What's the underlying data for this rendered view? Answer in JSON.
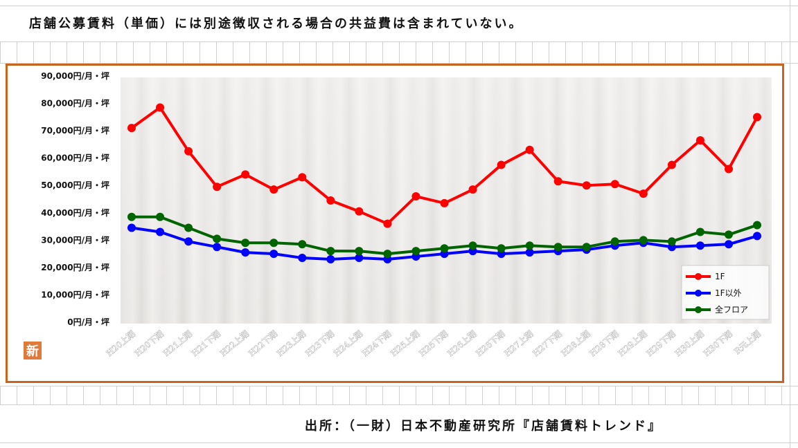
{
  "header": {
    "note": "店舗公募賃料（単価）には別途徴収される場合の共益費は含まれていない。"
  },
  "footer": {
    "source": "出所：（一財）日本不動産研究所『店舗賃料トレンド』"
  },
  "badge": {
    "text": "新"
  },
  "colors": {
    "frame": "#c8641e",
    "1F": "#ff0000",
    "1F以外": "#0000ff",
    "全フロア": "#006400"
  },
  "chart_data": {
    "type": "line",
    "title": "",
    "xlabel": "",
    "ylabel": "",
    "ylim": [
      0,
      90000
    ],
    "y_ticks": [
      0,
      10000,
      20000,
      30000,
      40000,
      50000,
      60000,
      70000,
      80000,
      90000
    ],
    "y_tick_labels": [
      "0円/月・坪",
      "10,000円/月・坪",
      "20,000円/月・坪",
      "30,000円/月・坪",
      "40,000円/月・坪",
      "50,000円/月・坪",
      "60,000円/月・坪",
      "70,000円/月・坪",
      "80,000円/月・坪",
      "90,000円/月・坪"
    ],
    "categories": [
      "H20上期",
      "H20下期",
      "H21上期",
      "H21下期",
      "H22上期",
      "H22下期",
      "H23上期",
      "H23下期",
      "H24上期",
      "H24下期",
      "H25上期",
      "H25下期",
      "H26上期",
      "H26下期",
      "H27上期",
      "H27下期",
      "H28上期",
      "H28下期",
      "H29上期",
      "H29下期",
      "H30上期",
      "H30下期",
      "R元上期"
    ],
    "series": [
      {
        "name": "1F",
        "values": [
          71000,
          78500,
          62500,
          49500,
          54000,
          48500,
          53000,
          44500,
          40500,
          36000,
          46000,
          43500,
          48500,
          57500,
          63000,
          51500,
          50000,
          50500,
          47000,
          57500,
          66500,
          56000,
          75000
        ]
      },
      {
        "name": "1F以外",
        "values": [
          34500,
          33000,
          29500,
          27500,
          25500,
          25000,
          23500,
          23000,
          23500,
          23000,
          24000,
          25000,
          26000,
          25000,
          25500,
          26000,
          26500,
          28000,
          29000,
          27500,
          28000,
          28500,
          31500
        ]
      },
      {
        "name": "全フロア",
        "values": [
          38500,
          38500,
          34500,
          30500,
          29000,
          29000,
          28500,
          26000,
          26000,
          25000,
          26000,
          27000,
          28000,
          27000,
          28000,
          27500,
          27500,
          29500,
          30000,
          29500,
          33000,
          32000,
          35500
        ]
      }
    ],
    "legend": {
      "placement": "bottom-right"
    },
    "grid": false
  }
}
